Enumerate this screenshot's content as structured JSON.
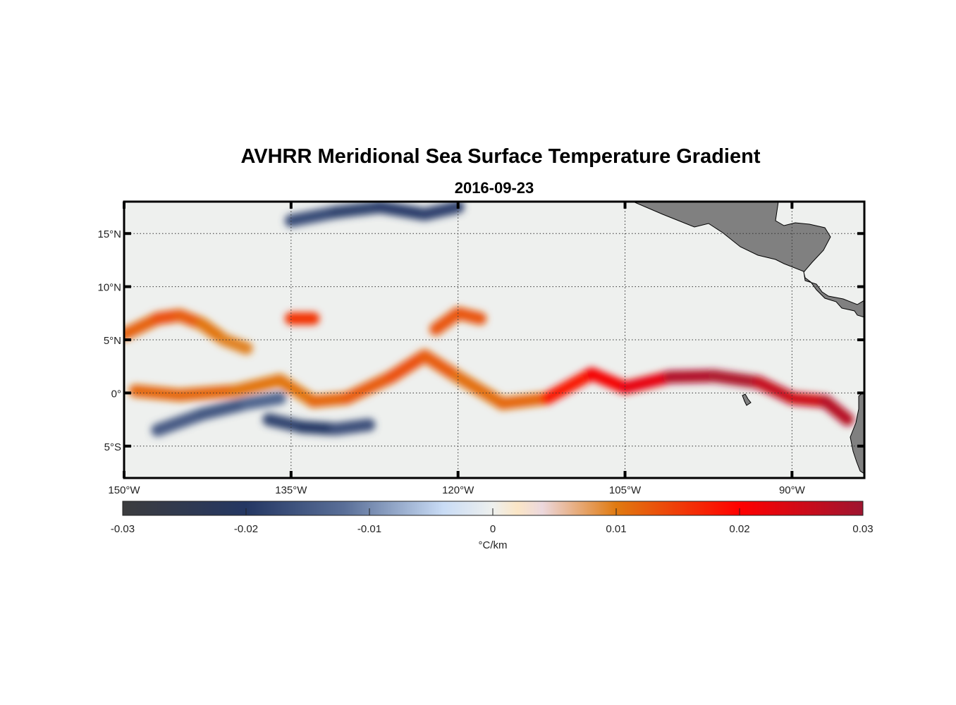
{
  "chart_data": {
    "type": "heatmap",
    "title": "AVHRR Meridional Sea Surface Temperature Gradient",
    "subtitle": "2016-09-23",
    "x_axis": {
      "label": "",
      "range": [
        -150,
        -83.5
      ],
      "ticks": [
        {
          "value": -150,
          "label": "150°W"
        },
        {
          "value": -135,
          "label": "135°W"
        },
        {
          "value": -120,
          "label": "120°W"
        },
        {
          "value": -105,
          "label": "105°W"
        },
        {
          "value": -90,
          "label": "90°W"
        }
      ]
    },
    "y_axis": {
      "label": "",
      "range": [
        -8,
        18
      ],
      "ticks": [
        {
          "value": 15,
          "label": "15°N"
        },
        {
          "value": 10,
          "label": "10°N"
        },
        {
          "value": 5,
          "label": "5°N"
        },
        {
          "value": 0,
          "label": "0°"
        },
        {
          "value": -5,
          "label": "5°S"
        }
      ]
    },
    "grid": "dotted",
    "colorbar": {
      "placement": "bottom",
      "range": [
        -0.03,
        0.03
      ],
      "ticks": [
        -0.03,
        -0.02,
        -0.01,
        0,
        0.01,
        0.02,
        0.03
      ],
      "tick_labels": [
        "-0.03",
        "-0.02",
        "-0.01",
        "0",
        "0.01",
        "0.02",
        "0.03"
      ],
      "unit": "°C/km",
      "colormap": [
        {
          "value": -0.03,
          "color": "#3c3c3e"
        },
        {
          "value": -0.02,
          "color": "#243763"
        },
        {
          "value": -0.012,
          "color": "#5a6f98"
        },
        {
          "value": -0.004,
          "color": "#c9dcf5"
        },
        {
          "value": 0,
          "color": "#eef0ee"
        },
        {
          "value": 0.002,
          "color": "#fbe6c6"
        },
        {
          "value": 0.004,
          "color": "#ecd8dd"
        },
        {
          "value": 0.01,
          "color": "#e07a10"
        },
        {
          "value": 0.02,
          "color": "#ff0000"
        },
        {
          "value": 0.03,
          "color": "#9e1530"
        }
      ]
    },
    "land_color": "#808080",
    "features": [
      {
        "name": "equatorial-front",
        "sign": "positive",
        "lon": [
          -149,
          -145,
          -140,
          -136,
          -133,
          -130,
          -126,
          -123,
          -120,
          -116,
          -112,
          -108,
          -105,
          -101,
          -97,
          -93,
          -90,
          -87,
          -85
        ],
        "lat": [
          0.2,
          -0.2,
          0.2,
          1.2,
          -0.8,
          -0.5,
          1.5,
          3.5,
          1.5,
          -1.0,
          -0.5,
          1.8,
          0.5,
          1.5,
          1.6,
          1.0,
          -0.5,
          -0.8,
          -2.5
        ],
        "strength": [
          0.011,
          0.012,
          0.011,
          0.01,
          0.011,
          0.012,
          0.013,
          0.014,
          0.011,
          0.011,
          0.012,
          0.024,
          0.018,
          0.027,
          0.029,
          0.028,
          0.024,
          0.026,
          0.029
        ]
      },
      {
        "name": "north-front-west",
        "sign": "positive",
        "lon": [
          -150,
          -147,
          -145,
          -143,
          -141,
          -139
        ],
        "lat": [
          5.5,
          7.0,
          7.3,
          6.5,
          5.0,
          4.2
        ],
        "strength": [
          0.011,
          0.013,
          0.014,
          0.011,
          0.01,
          0.009
        ]
      },
      {
        "name": "ridge-135w",
        "sign": "positive",
        "lon": [
          -135,
          -133
        ],
        "lat": [
          7.0,
          7.0
        ],
        "strength": [
          0.016,
          0.016
        ]
      },
      {
        "name": "ridge-120w",
        "sign": "positive",
        "lon": [
          -122,
          -120,
          -118
        ],
        "lat": [
          6.0,
          7.5,
          7.0
        ],
        "strength": [
          0.012,
          0.014,
          0.012
        ]
      },
      {
        "name": "south-cold-band",
        "sign": "negative",
        "lon": [
          -147,
          -143,
          -139,
          -136
        ],
        "lat": [
          -3.5,
          -2.0,
          -1.0,
          -0.5
        ],
        "strength": [
          -0.014,
          -0.016,
          -0.015,
          -0.012
        ]
      },
      {
        "name": "south-cold-band-2",
        "sign": "negative",
        "lon": [
          -137,
          -134,
          -131,
          -128
        ],
        "lat": [
          -2.5,
          -3.2,
          -3.4,
          -3.0
        ],
        "strength": [
          -0.016,
          -0.02,
          -0.019,
          -0.014
        ]
      },
      {
        "name": "north-cold-band",
        "sign": "negative",
        "lon": [
          -135,
          -131,
          -127,
          -123,
          -120
        ],
        "lat": [
          16.2,
          17.0,
          17.5,
          16.8,
          17.5
        ],
        "strength": [
          -0.015,
          -0.019,
          -0.018,
          -0.02,
          -0.017
        ]
      }
    ]
  }
}
